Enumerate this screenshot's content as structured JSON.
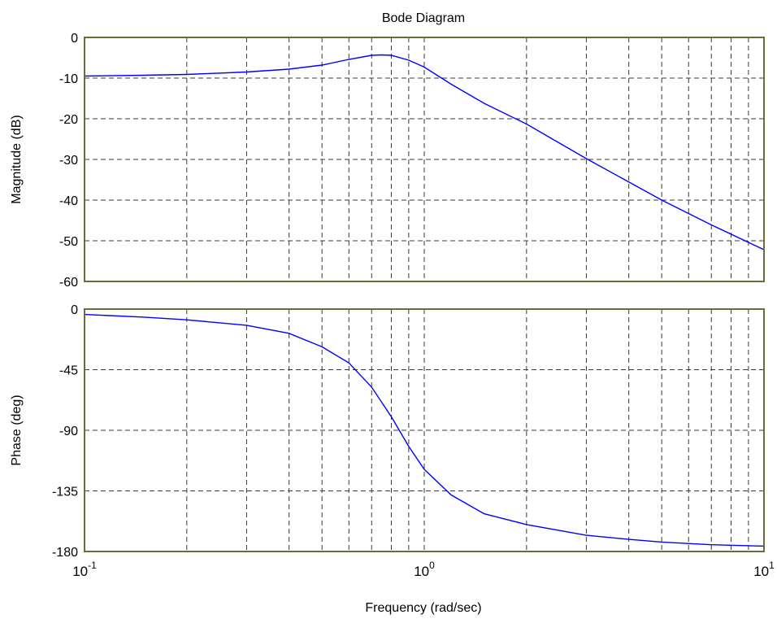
{
  "chart_data": [
    {
      "type": "line",
      "panel": "magnitude",
      "title": "Bode Diagram",
      "xlabel": "",
      "ylabel": "Magnitude (dB)",
      "xscale": "log",
      "xlim": [
        0.1,
        10
      ],
      "ylim": [
        -60,
        0
      ],
      "yticks": [
        0,
        -10,
        -20,
        -30,
        -40,
        -50,
        -60
      ],
      "grid": true,
      "series": [
        {
          "color": "#0000ff",
          "x": [
            0.1,
            0.15,
            0.2,
            0.3,
            0.4,
            0.5,
            0.6,
            0.7,
            0.75,
            0.8,
            0.9,
            1.0,
            1.2,
            1.5,
            2,
            3,
            5,
            7,
            10
          ],
          "y": [
            -9.5,
            -9.3,
            -9.1,
            -8.5,
            -7.8,
            -6.8,
            -5.4,
            -4.4,
            -4.3,
            -4.4,
            -5.6,
            -7.3,
            -11.5,
            -16.2,
            -21.3,
            -29.8,
            -40.0,
            -46.1,
            -52.2
          ]
        }
      ]
    },
    {
      "type": "line",
      "panel": "phase",
      "xlabel": "Frequency (rad/sec)",
      "ylabel": "Phase (deg)",
      "xscale": "log",
      "xlim": [
        0.1,
        10
      ],
      "ylim": [
        -180,
        0
      ],
      "yticks": [
        0,
        -45,
        -90,
        -135,
        -180
      ],
      "xticks": [
        {
          "base": "10",
          "exp": "-1",
          "value": 0.1
        },
        {
          "base": "10",
          "exp": "0",
          "value": 1
        },
        {
          "base": "10",
          "exp": "1",
          "value": 10
        }
      ],
      "grid": true,
      "series": [
        {
          "color": "#0000ff",
          "x": [
            0.1,
            0.15,
            0.2,
            0.3,
            0.4,
            0.5,
            0.6,
            0.7,
            0.8,
            0.9,
            1.0,
            1.2,
            1.5,
            2,
            3,
            4,
            5,
            7,
            10
          ],
          "y": [
            -4,
            -6,
            -8,
            -12,
            -18,
            -28,
            -40,
            -58,
            -80,
            -102,
            -119,
            -138,
            -152,
            -160,
            -168,
            -171,
            -173,
            -175,
            -176
          ]
        }
      ]
    }
  ]
}
